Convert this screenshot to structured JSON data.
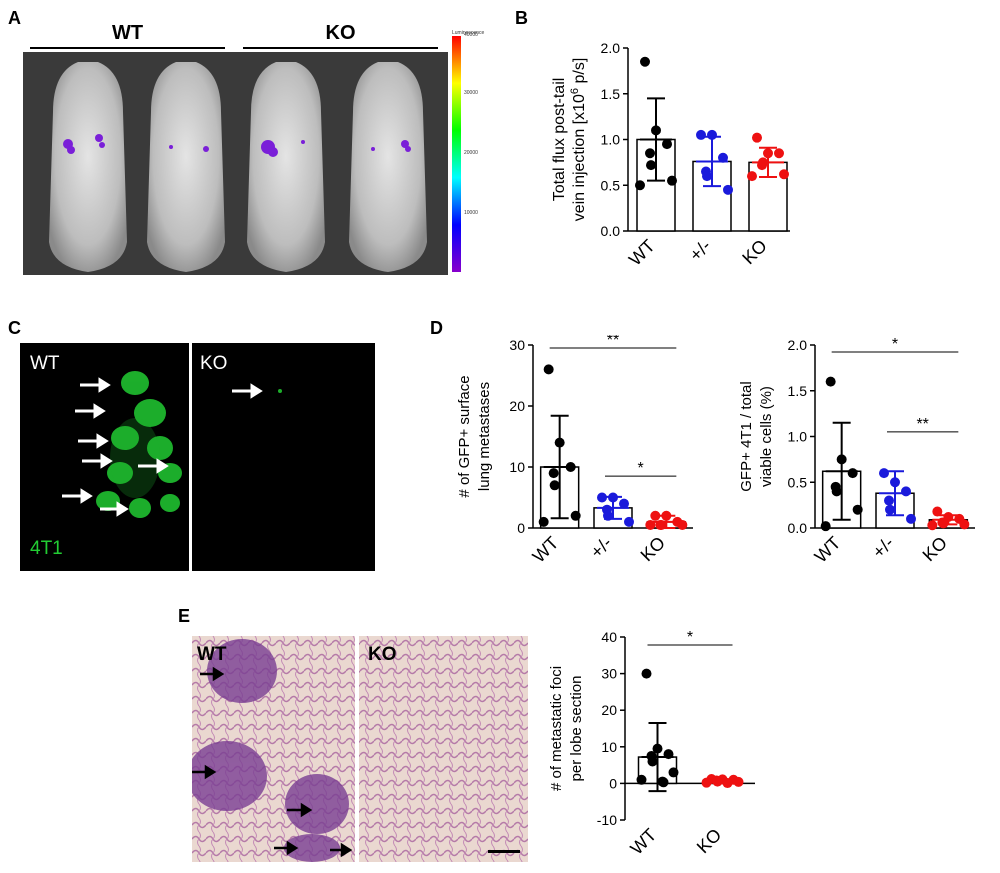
{
  "panels": {
    "a": "A",
    "b": "B",
    "c": "C",
    "d": "D",
    "e": "E"
  },
  "panel_a": {
    "group_left": "WT",
    "group_right": "KO",
    "colorbar_title": "Luminescence",
    "colorbar_ticks": [
      "40000",
      "30000",
      "20000",
      "10000"
    ],
    "colorbar_colors": [
      "#ff0000",
      "#ffff00",
      "#00ff00",
      "#00ffff",
      "#0000ff",
      "#8800cc"
    ]
  },
  "panel_c": {
    "left_label": "WT",
    "right_label": "KO",
    "cell_label": "4T1",
    "fluor_color": "#22cc33"
  },
  "panel_e": {
    "left_label": "WT",
    "right_label": "KO"
  },
  "colors": {
    "WT": "#000000",
    "het": "#1a1adb",
    "KO": "#ee1111"
  },
  "chart_data": [
    {
      "id": "B",
      "type": "bar",
      "categories": [
        "WT",
        "+/-",
        "KO"
      ],
      "ylabel": "Total flux post-tail vein injection [x10^6 p/s]",
      "ylim": [
        0,
        2.0
      ],
      "yticks": [
        "0.0",
        "0.5",
        "1.0",
        "1.5",
        "2.0"
      ],
      "means": [
        1.0,
        0.76,
        0.75
      ],
      "sd": [
        0.45,
        0.27,
        0.16
      ],
      "points": [
        [
          1.85,
          1.1,
          0.95,
          0.85,
          0.72,
          0.55,
          0.5
        ],
        [
          1.05,
          1.05,
          0.8,
          0.65,
          0.6,
          0.45
        ],
        [
          1.02,
          0.85,
          0.85,
          0.72,
          0.75,
          0.62,
          0.6
        ]
      ]
    },
    {
      "id": "D1",
      "type": "bar",
      "categories": [
        "WT",
        "+/-",
        "KO"
      ],
      "ylabel": "# of GFP+ surface lung metastases",
      "ylim": [
        0,
        30
      ],
      "yticks": [
        "0",
        "10",
        "20",
        "30"
      ],
      "means": [
        10,
        3.3,
        1.0
      ],
      "sd": [
        8.4,
        1.8,
        1.0
      ],
      "points": [
        [
          26,
          14,
          10,
          9,
          7,
          2,
          1
        ],
        [
          5,
          5,
          4,
          3,
          2,
          1
        ],
        [
          2,
          2,
          1,
          0.5,
          0.5,
          0.5,
          0.5
        ]
      ],
      "significance": [
        {
          "from": "WT",
          "to": "KO",
          "label": "**"
        },
        {
          "from": "+/-",
          "to": "KO",
          "label": "*"
        }
      ]
    },
    {
      "id": "D2",
      "type": "bar",
      "categories": [
        "WT",
        "+/-",
        "KO"
      ],
      "ylabel": "GFP+ 4T1 / total viable cells (%)",
      "ylim": [
        0,
        2.0
      ],
      "yticks": [
        "0.0",
        "0.5",
        "1.0",
        "1.5",
        "2.0"
      ],
      "means": [
        0.62,
        0.38,
        0.09
      ],
      "sd": [
        0.53,
        0.24,
        0.05
      ],
      "points": [
        [
          1.6,
          0.75,
          0.6,
          0.45,
          0.4,
          0.2,
          0.02
        ],
        [
          0.6,
          0.5,
          0.4,
          0.3,
          0.2,
          0.1
        ],
        [
          0.18,
          0.12,
          0.1,
          0.06,
          0.05,
          0.04,
          0.03
        ]
      ],
      "significance": [
        {
          "from": "WT",
          "to": "KO",
          "label": "*"
        },
        {
          "from": "+/-",
          "to": "KO",
          "label": "**"
        }
      ]
    },
    {
      "id": "E",
      "type": "bar",
      "categories": [
        "WT",
        "KO"
      ],
      "ylabel": "# of metastatic foci per lobe section",
      "ylim": [
        -10,
        40
      ],
      "yticks": [
        "-10",
        "0",
        "10",
        "20",
        "30",
        "40"
      ],
      "means": [
        7.2,
        0.6
      ],
      "sd": [
        9.3,
        0.5
      ],
      "points": [
        [
          30,
          9.5,
          8,
          7.5,
          6,
          3,
          1,
          0.5,
          0.3
        ],
        [
          1.2,
          1.1,
          1,
          0.8,
          0.5,
          0.4,
          0.2,
          0.1
        ]
      ],
      "significance": [
        {
          "from": "WT",
          "to": "KO",
          "label": "*"
        }
      ]
    }
  ]
}
